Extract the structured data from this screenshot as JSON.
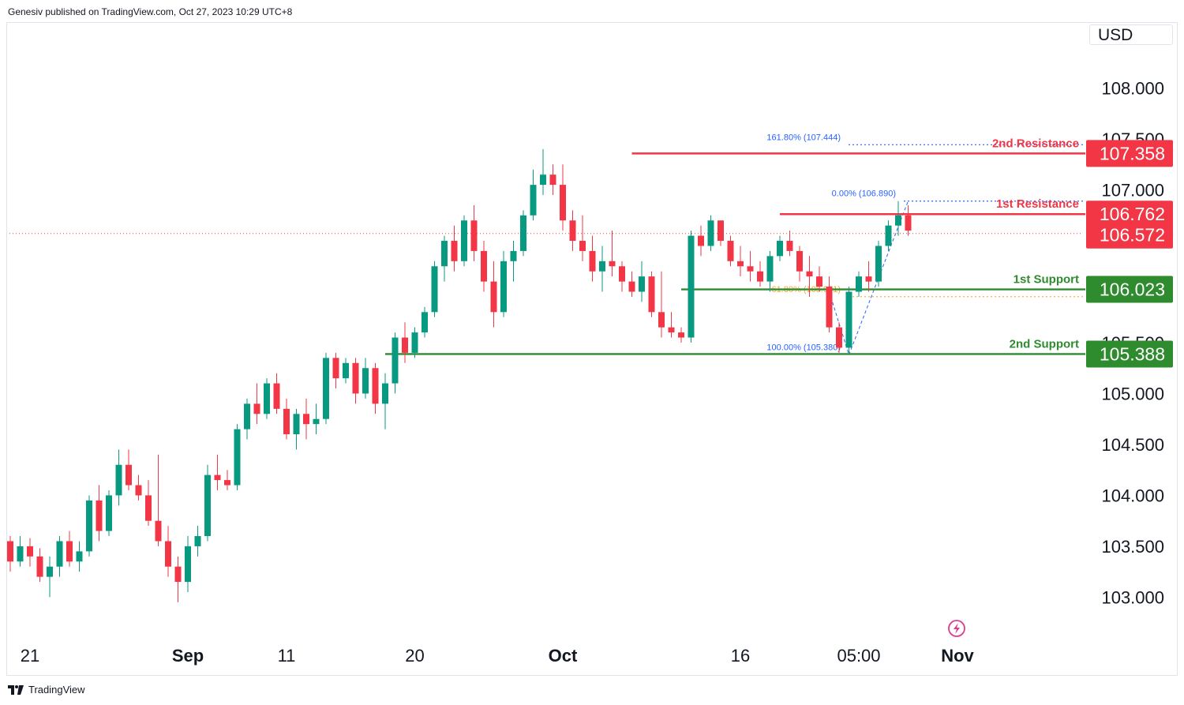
{
  "header": {
    "publisher_line": "Genesiv published on TradingView.com, Oct 27, 2023 10:29 UTC+8"
  },
  "currency_button": "USD",
  "footer": {
    "brand": "TradingView"
  },
  "colors": {
    "up": "#089981",
    "down": "#f23645",
    "resistance": "#f23645",
    "support": "#2e8b2e",
    "fib_blue": "#2962ff",
    "fib_orange": "#f5a623",
    "text": "#131722"
  },
  "chart_data": {
    "type": "candlestick",
    "ylim": [
      102.6,
      108.4
    ],
    "y_ticks": [
      "108.000",
      "107.500",
      "107.000",
      "105.500",
      "105.000",
      "104.500",
      "104.000",
      "103.500",
      "103.000"
    ],
    "x_ticks": [
      {
        "label": "21",
        "index": 2
      },
      {
        "label": "Sep",
        "index": 18
      },
      {
        "label": "11",
        "index": 28
      },
      {
        "label": "20",
        "index": 41
      },
      {
        "label": "Oct",
        "index": 56
      },
      {
        "label": "16",
        "index": 74
      },
      {
        "label": "05:00",
        "index": 86
      },
      {
        "label": "Nov",
        "index": 96
      }
    ],
    "candles_ohlc": [
      [
        103.55,
        103.6,
        103.25,
        103.35
      ],
      [
        103.35,
        103.6,
        103.3,
        103.5
      ],
      [
        103.5,
        103.58,
        103.3,
        103.4
      ],
      [
        103.4,
        103.48,
        103.15,
        103.2
      ],
      [
        103.2,
        103.4,
        103.0,
        103.3
      ],
      [
        103.3,
        103.6,
        103.2,
        103.55
      ],
      [
        103.55,
        103.65,
        103.3,
        103.35
      ],
      [
        103.35,
        103.55,
        103.25,
        103.45
      ],
      [
        103.45,
        104.0,
        103.4,
        103.95
      ],
      [
        103.95,
        104.1,
        103.55,
        103.65
      ],
      [
        103.65,
        104.05,
        103.6,
        104.0
      ],
      [
        104.0,
        104.45,
        103.9,
        104.3
      ],
      [
        104.3,
        104.45,
        104.05,
        104.1
      ],
      [
        104.1,
        104.2,
        103.95,
        104.0
      ],
      [
        104.0,
        104.15,
        103.7,
        103.75
      ],
      [
        103.75,
        104.4,
        103.5,
        103.55
      ],
      [
        103.55,
        103.7,
        103.2,
        103.3
      ],
      [
        103.3,
        103.4,
        102.95,
        103.15
      ],
      [
        103.15,
        103.6,
        103.05,
        103.5
      ],
      [
        103.5,
        103.7,
        103.4,
        103.6
      ],
      [
        103.6,
        104.3,
        103.55,
        104.2
      ],
      [
        104.2,
        104.4,
        104.05,
        104.15
      ],
      [
        104.15,
        104.25,
        104.05,
        104.1
      ],
      [
        104.1,
        104.7,
        104.05,
        104.65
      ],
      [
        104.65,
        104.95,
        104.55,
        104.9
      ],
      [
        104.9,
        105.1,
        104.7,
        104.8
      ],
      [
        104.8,
        105.15,
        104.75,
        105.1
      ],
      [
        105.1,
        105.2,
        104.8,
        104.85
      ],
      [
        104.85,
        104.95,
        104.55,
        104.6
      ],
      [
        104.6,
        104.85,
        104.45,
        104.8
      ],
      [
        104.8,
        104.95,
        104.55,
        104.7
      ],
      [
        104.7,
        104.9,
        104.6,
        104.75
      ],
      [
        104.75,
        105.4,
        104.7,
        105.35
      ],
      [
        105.35,
        105.4,
        105.05,
        105.15
      ],
      [
        105.15,
        105.35,
        105.1,
        105.3
      ],
      [
        105.3,
        105.35,
        104.9,
        105.0
      ],
      [
        105.0,
        105.35,
        104.95,
        105.25
      ],
      [
        105.25,
        105.3,
        104.8,
        104.9
      ],
      [
        104.9,
        105.2,
        104.65,
        105.1
      ],
      [
        105.1,
        105.6,
        105.0,
        105.55
      ],
      [
        105.55,
        105.7,
        105.3,
        105.4
      ],
      [
        105.4,
        105.65,
        105.35,
        105.6
      ],
      [
        105.6,
        105.85,
        105.55,
        105.8
      ],
      [
        105.8,
        106.3,
        105.75,
        106.25
      ],
      [
        106.25,
        106.55,
        106.1,
        106.5
      ],
      [
        106.5,
        106.65,
        106.2,
        106.3
      ],
      [
        106.3,
        106.75,
        106.25,
        106.7
      ],
      [
        106.7,
        106.85,
        106.3,
        106.4
      ],
      [
        106.4,
        106.5,
        106.0,
        106.1
      ],
      [
        106.1,
        106.3,
        105.65,
        105.8
      ],
      [
        105.8,
        106.4,
        105.75,
        106.3
      ],
      [
        106.3,
        106.5,
        106.1,
        106.4
      ],
      [
        106.4,
        106.8,
        106.35,
        106.75
      ],
      [
        106.75,
        107.2,
        106.7,
        107.05
      ],
      [
        107.05,
        107.4,
        106.95,
        107.15
      ],
      [
        107.15,
        107.25,
        106.95,
        107.05
      ],
      [
        107.05,
        107.25,
        106.6,
        106.7
      ],
      [
        106.7,
        106.8,
        106.4,
        106.5
      ],
      [
        106.5,
        106.75,
        106.3,
        106.4
      ],
      [
        106.4,
        106.55,
        106.1,
        106.2
      ],
      [
        106.2,
        106.45,
        106.0,
        106.3
      ],
      [
        106.3,
        106.6,
        106.15,
        106.25
      ],
      [
        106.25,
        106.3,
        106.0,
        106.1
      ],
      [
        106.1,
        106.2,
        105.95,
        106.0
      ],
      [
        106.0,
        106.3,
        105.9,
        106.15
      ],
      [
        106.15,
        106.2,
        105.75,
        105.8
      ],
      [
        105.8,
        106.2,
        105.55,
        105.65
      ],
      [
        105.65,
        105.8,
        105.55,
        105.6
      ],
      [
        105.6,
        105.65,
        105.5,
        105.55
      ],
      [
        105.55,
        106.6,
        105.5,
        106.55
      ],
      [
        106.55,
        106.65,
        106.35,
        106.45
      ],
      [
        106.45,
        106.75,
        106.4,
        106.7
      ],
      [
        106.7,
        106.7,
        106.45,
        106.5
      ],
      [
        106.5,
        106.55,
        106.25,
        106.3
      ],
      [
        106.3,
        106.45,
        106.15,
        106.25
      ],
      [
        106.25,
        106.4,
        106.1,
        106.2
      ],
      [
        106.2,
        106.3,
        106.05,
        106.1
      ],
      [
        106.1,
        106.4,
        106.0,
        106.35
      ],
      [
        106.35,
        106.55,
        106.3,
        106.5
      ],
      [
        106.5,
        106.6,
        106.35,
        106.4
      ],
      [
        106.4,
        106.45,
        106.1,
        106.2
      ],
      [
        106.2,
        106.35,
        105.95,
        106.15
      ],
      [
        106.15,
        106.25,
        106.0,
        106.05
      ],
      [
        106.05,
        106.15,
        105.6,
        105.65
      ],
      [
        105.65,
        105.7,
        105.4,
        105.45
      ],
      [
        105.45,
        106.05,
        105.4,
        106.0
      ],
      [
        106.0,
        106.2,
        105.95,
        106.15
      ],
      [
        106.15,
        106.3,
        106.0,
        106.1
      ],
      [
        106.1,
        106.5,
        106.05,
        106.45
      ],
      [
        106.45,
        106.7,
        106.4,
        106.65
      ],
      [
        106.65,
        106.89,
        106.55,
        106.75
      ],
      [
        106.75,
        106.85,
        106.55,
        106.6
      ]
    ],
    "levels": [
      {
        "name": "2nd Resistance",
        "value": "107.358",
        "kind": "resistance"
      },
      {
        "name": "1st Resistance",
        "value": "106.762",
        "kind": "resistance"
      },
      {
        "name": "1st Support",
        "value": "106.023",
        "kind": "support"
      },
      {
        "name": "2nd Support",
        "value": "105.388",
        "kind": "support"
      }
    ],
    "last_price": "106.572",
    "fibonacci": [
      {
        "label": "161.80% (107.444)",
        "value": 107.444
      },
      {
        "label": "0.00% (106.890)",
        "value": 106.89
      },
      {
        "label": "61.80% (105.951)",
        "value": 105.951
      },
      {
        "label": "100.00% (105.380)",
        "value": 105.38
      }
    ]
  }
}
